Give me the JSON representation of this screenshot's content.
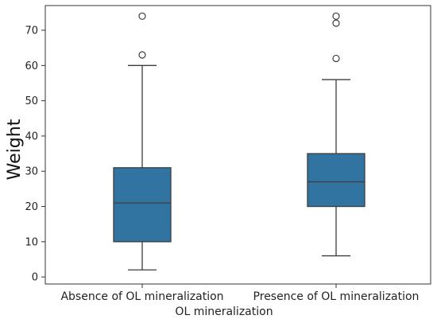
{
  "chart_data": {
    "type": "box",
    "xlabel": "OL mineralization",
    "ylabel": "Weight",
    "categories": [
      "Absence of OL mineralization",
      "Presence of OL mineralization"
    ],
    "yticks": [
      0,
      10,
      20,
      30,
      40,
      50,
      60,
      70
    ],
    "ylim": [
      -2,
      77
    ],
    "box_color": "#3274a1",
    "boxes": [
      {
        "category": "Absence of OL mineralization",
        "whisker_low": 2,
        "q1": 10,
        "median": 21,
        "q3": 31,
        "whisker_high": 60,
        "outliers": [
          63,
          74
        ]
      },
      {
        "category": "Presence of OL mineralization",
        "whisker_low": 6,
        "q1": 20,
        "median": 27,
        "q3": 35,
        "whisker_high": 56,
        "outliers": [
          62,
          72,
          74
        ]
      }
    ],
    "grid": false,
    "legend": "none"
  }
}
